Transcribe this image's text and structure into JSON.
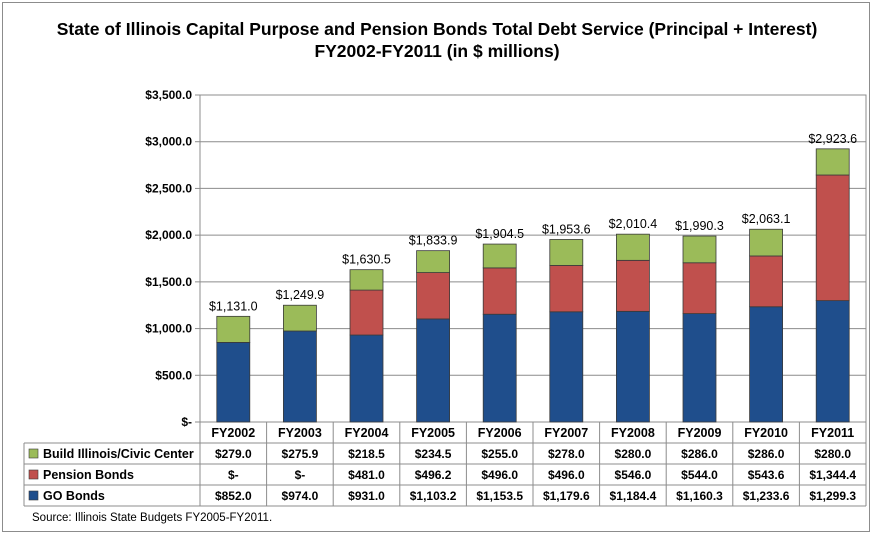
{
  "chart_data": {
    "type": "bar",
    "stacked": true,
    "title": "State of Illinois Capital Purpose and Pension Bonds Total Debt Service (Principal + Interest)",
    "subtitle": "FY2002-FY2011 (in $ millions)",
    "categories": [
      "FY2002",
      "FY2003",
      "FY2004",
      "FY2005",
      "FY2006",
      "FY2007",
      "FY2008",
      "FY2009",
      "FY2010",
      "FY2011"
    ],
    "series": [
      {
        "name": "GO Bonds",
        "color": "#1f4e8c",
        "values": [
          852.0,
          974.0,
          931.0,
          1103.2,
          1153.5,
          1179.6,
          1184.4,
          1160.3,
          1233.6,
          1299.3
        ],
        "labels": [
          "$852.0",
          "$974.0",
          "$931.0",
          "$1,103.2",
          "$1,153.5",
          "$1,179.6",
          "$1,184.4",
          "$1,160.3",
          "$1,233.6",
          "$1,299.3"
        ]
      },
      {
        "name": "Pension Bonds",
        "color": "#c0504d",
        "values": [
          0,
          0,
          481.0,
          496.2,
          496.0,
          496.0,
          546.0,
          544.0,
          543.6,
          1344.4
        ],
        "labels": [
          "$-",
          "$-",
          "$481.0",
          "$496.2",
          "$496.0",
          "$496.0",
          "$546.0",
          "$544.0",
          "$543.6",
          "$1,344.4"
        ]
      },
      {
        "name": "Build Illinois/Civic Center",
        "color": "#9bbb59",
        "values": [
          279.0,
          275.9,
          218.5,
          234.5,
          255.0,
          278.0,
          280.0,
          286.0,
          286.0,
          280.0
        ],
        "labels": [
          "$279.0",
          "$275.9",
          "$218.5",
          "$234.5",
          "$255.0",
          "$278.0",
          "$280.0",
          "$286.0",
          "$286.0",
          "$280.0"
        ]
      }
    ],
    "totals": [
      1131.0,
      1249.9,
      1630.5,
      1833.9,
      1904.5,
      1953.6,
      2010.4,
      1990.3,
      2063.1,
      2923.6
    ],
    "total_labels": [
      "$1,131.0",
      "$1,249.9",
      "$1,630.5",
      "$1,833.9",
      "$1,904.5",
      "$1,953.6",
      "$2,010.4",
      "$1,990.3",
      "$2,063.1",
      "$2,923.6"
    ],
    "ylim": [
      0,
      3500
    ],
    "yticks": [
      0,
      500,
      1000,
      1500,
      2000,
      2500,
      3000,
      3500
    ],
    "ytick_labels": [
      "$-",
      "$500.0",
      "$1,000.0",
      "$1,500.0",
      "$2,000.0",
      "$2,500.0",
      "$3,000.0",
      "$3,500.0"
    ],
    "grid": true,
    "legend": "data-table",
    "table_row_order": [
      "Build Illinois/Civic Center",
      "Pension Bonds",
      "GO Bonds"
    ]
  },
  "source": "Source: Illinois State Budgets FY2005-FY2011."
}
